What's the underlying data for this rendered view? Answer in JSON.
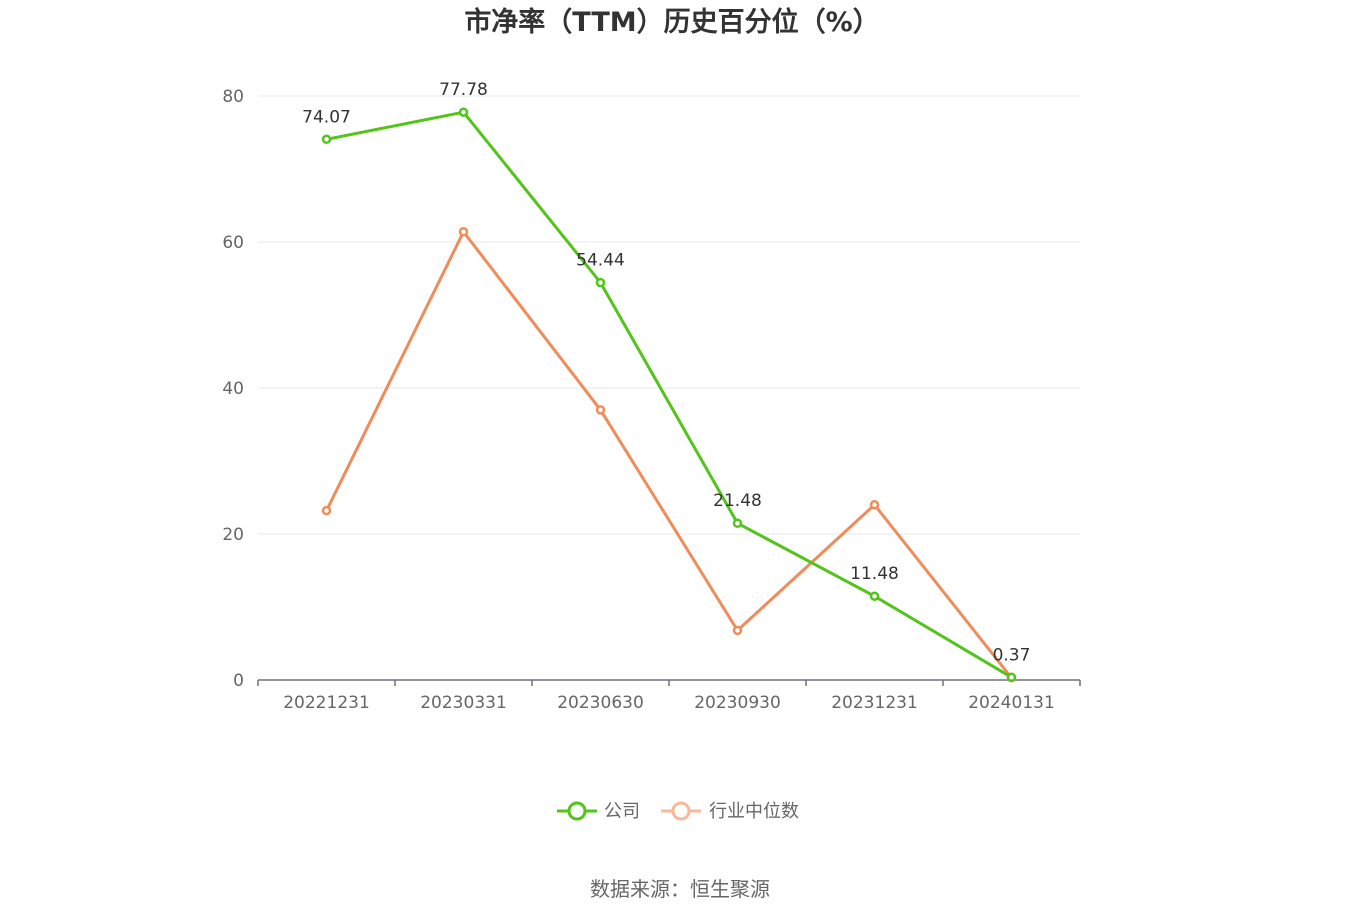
{
  "chart_data": {
    "type": "line",
    "title": "市净率（TTM）历史百分位（%）",
    "categories": [
      "20221231",
      "20230331",
      "20230630",
      "20230930",
      "20231231",
      "20240131"
    ],
    "series": [
      {
        "name": "公司",
        "values": [
          74.07,
          77.78,
          54.44,
          21.48,
          11.48,
          0.37
        ],
        "data_labels": [
          "74.07",
          "77.78",
          "54.44",
          "21.48",
          "11.48",
          "0.37"
        ],
        "color": "#52c41a"
      },
      {
        "name": "行业中位数",
        "values": [
          23.2,
          61.4,
          37.0,
          6.8,
          24.0,
          0.3
        ],
        "color": "#f08c5a"
      }
    ],
    "yticks": [
      "0",
      "20",
      "40",
      "60",
      "80"
    ],
    "ylim": [
      0,
      80
    ],
    "grid": true,
    "legend_position": "bottom"
  },
  "source": "数据来源：恒生聚源",
  "colors": {
    "grid": "#e6e8f2",
    "axis": "#6e7079",
    "legend_industry": "#f8b89a"
  }
}
